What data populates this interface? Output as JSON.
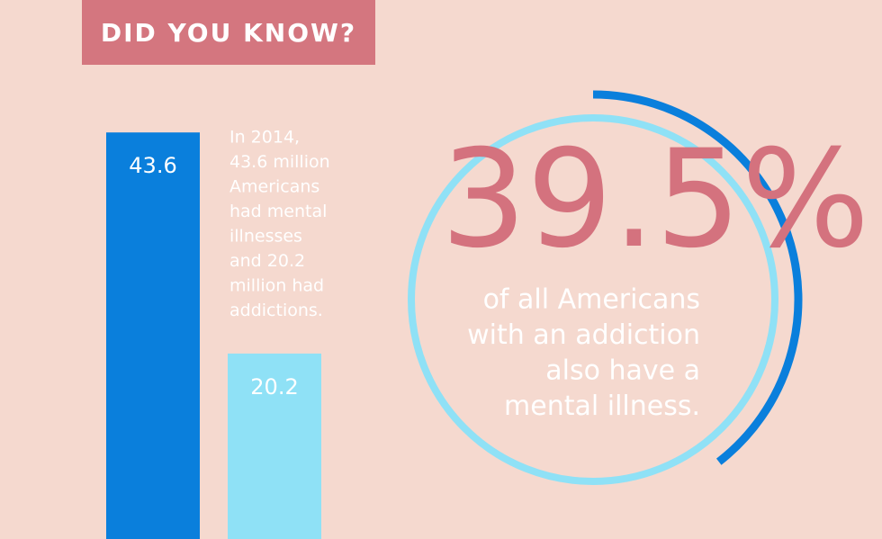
{
  "chart_data": [
    {
      "type": "bar",
      "title": "DID YOU KNOW?",
      "annotation": [
        "In 2014,",
        "43.6 million",
        "Americans",
        "had mental",
        "illnesses",
        "and 20.2",
        "million had",
        "addictions."
      ],
      "categories": [
        null,
        null
      ],
      "values": [
        43.6,
        20.2
      ],
      "value_labels": [
        "43.6",
        "20.2"
      ],
      "colors": [
        "#0a7fdc",
        "#8fe1f6"
      ]
    },
    {
      "type": "gauge",
      "values": [
        39.5
      ],
      "value_labels": [
        "39.5%"
      ],
      "annotation": [
        "of all Americans",
        "with an addiction",
        "also have a",
        "mental illness."
      ],
      "color": "#0a7fdc",
      "track_color": "#8fe1f6",
      "label_color": "#d4727e"
    }
  ]
}
